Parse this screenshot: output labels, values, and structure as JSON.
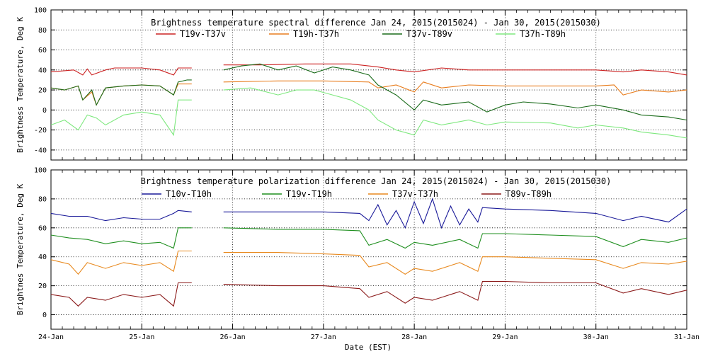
{
  "xlabel": "Date (EST)",
  "x_ticks": [
    "24-Jan",
    "25-Jan",
    "26-Jan",
    "27-Jan",
    "28-Jan",
    "29-Jan",
    "30-Jan",
    "31-Jan"
  ],
  "chart_data": [
    {
      "type": "line",
      "title": "Brightness temperature spectral difference    Jan 24, 2015(2015024) - Jan 30, 2015(2015030)",
      "ylabel": "Brightness Temperature, Deg K",
      "xlim": [
        0,
        7
      ],
      "ylim": [
        -50,
        100
      ],
      "y_ticks": [
        -40,
        -20,
        0,
        20,
        40,
        60,
        80,
        100
      ],
      "grid": true,
      "legend_placement": "top",
      "data_gap_days": [
        1.55,
        1.9
      ],
      "series": [
        {
          "name": "T19v-T37v",
          "color": "#cc2222",
          "x": [
            0,
            0.25,
            0.35,
            0.4,
            0.45,
            0.6,
            0.7,
            1.0,
            1.2,
            1.35,
            1.4,
            1.55,
            1.9,
            2.3,
            2.8,
            3.3,
            3.6,
            3.8,
            4.0,
            4.3,
            4.6,
            5.0,
            5.6,
            6.0,
            6.3,
            6.5,
            6.8,
            7.0
          ],
          "y": [
            38,
            40,
            35,
            41,
            35,
            40,
            42,
            42,
            40,
            35,
            42,
            42,
            45,
            45,
            46,
            46,
            43,
            40,
            38,
            42,
            40,
            40,
            40,
            40,
            38,
            40,
            38,
            35
          ]
        },
        {
          "name": "T19h-T37h",
          "color": "#e87d1e",
          "x": [
            0,
            0.15,
            0.3,
            0.35,
            0.45,
            0.5,
            0.6,
            0.8,
            1.0,
            1.2,
            1.35,
            1.4,
            1.55,
            1.9,
            2.5,
            3.0,
            3.5,
            3.6,
            3.8,
            4.0,
            4.1,
            4.3,
            4.6,
            5.0,
            5.5,
            6.0,
            6.2,
            6.3,
            6.5,
            6.8,
            7.0
          ],
          "y": [
            22,
            20,
            24,
            10,
            18,
            5,
            22,
            24,
            25,
            24,
            15,
            26,
            26,
            28,
            29,
            29,
            28,
            22,
            25,
            18,
            28,
            22,
            25,
            24,
            24,
            24,
            25,
            15,
            20,
            18,
            20
          ]
        },
        {
          "name": "T37v-T89v",
          "color": "#1a6b1a",
          "x": [
            0,
            0.15,
            0.3,
            0.35,
            0.45,
            0.5,
            0.6,
            0.8,
            1.0,
            1.2,
            1.35,
            1.4,
            1.5,
            1.55,
            1.9,
            2.1,
            2.3,
            2.5,
            2.7,
            2.9,
            3.1,
            3.3,
            3.5,
            3.6,
            3.8,
            4.0,
            4.1,
            4.3,
            4.6,
            4.8,
            5.0,
            5.2,
            5.5,
            5.8,
            6.0,
            6.3,
            6.5,
            6.8,
            7.0
          ],
          "y": [
            22,
            20,
            24,
            10,
            20,
            5,
            22,
            24,
            25,
            24,
            15,
            28,
            30,
            30,
            40,
            44,
            46,
            40,
            44,
            37,
            43,
            40,
            35,
            25,
            15,
            0,
            10,
            5,
            8,
            -2,
            5,
            8,
            6,
            2,
            5,
            0,
            -5,
            -7,
            -10
          ]
        },
        {
          "name": "T37h-T89h",
          "color": "#7ee87e",
          "x": [
            0,
            0.15,
            0.3,
            0.4,
            0.5,
            0.6,
            0.8,
            1.0,
            1.2,
            1.35,
            1.4,
            1.55,
            1.9,
            2.2,
            2.5,
            2.7,
            2.9,
            3.1,
            3.3,
            3.5,
            3.6,
            3.8,
            4.0,
            4.1,
            4.3,
            4.6,
            4.8,
            5.0,
            5.5,
            5.8,
            6.0,
            6.3,
            6.5,
            6.8,
            7.0
          ],
          "y": [
            -15,
            -10,
            -20,
            -5,
            -8,
            -15,
            -5,
            -2,
            -5,
            -25,
            10,
            10,
            20,
            22,
            15,
            20,
            20,
            15,
            10,
            0,
            -10,
            -20,
            -25,
            -10,
            -15,
            -10,
            -15,
            -12,
            -13,
            -18,
            -15,
            -18,
            -22,
            -25,
            -28
          ]
        }
      ]
    },
    {
      "type": "line",
      "title": "Brightness temperature polarization difference    Jan 24, 2015(2015024) - Jan 30, 2015(2015030)",
      "ylabel": "Brightnes Temperature, Deg K",
      "xlim": [
        0,
        7
      ],
      "ylim": [
        -10,
        100
      ],
      "y_ticks": [
        0,
        20,
        40,
        60,
        80,
        100
      ],
      "grid": true,
      "legend_placement": "top",
      "data_gap_days": [
        1.55,
        1.9
      ],
      "series": [
        {
          "name": "T10v-T10h",
          "color": "#1a1a99",
          "x": [
            0,
            0.2,
            0.4,
            0.6,
            0.8,
            1.0,
            1.2,
            1.35,
            1.4,
            1.55,
            1.9,
            2.5,
            3.0,
            3.4,
            3.5,
            3.6,
            3.7,
            3.8,
            3.9,
            4.0,
            4.1,
            4.2,
            4.3,
            4.4,
            4.5,
            4.6,
            4.7,
            4.75,
            5.0,
            5.5,
            6.0,
            6.3,
            6.5,
            6.8,
            7.0
          ],
          "y": [
            70,
            68,
            68,
            65,
            67,
            66,
            66,
            70,
            72,
            71,
            71,
            71,
            71,
            70,
            65,
            76,
            62,
            72,
            60,
            78,
            63,
            80,
            60,
            75,
            62,
            73,
            64,
            74,
            73,
            72,
            70,
            65,
            68,
            64,
            73
          ]
        },
        {
          "name": "T19v-T19h",
          "color": "#1f8f1f",
          "x": [
            0,
            0.2,
            0.4,
            0.6,
            0.8,
            1.0,
            1.2,
            1.35,
            1.4,
            1.55,
            1.9,
            2.5,
            3.0,
            3.4,
            3.5,
            3.7,
            3.9,
            4.0,
            4.2,
            4.5,
            4.7,
            4.75,
            5.0,
            5.5,
            6.0,
            6.3,
            6.5,
            6.8,
            7.0
          ],
          "y": [
            55,
            53,
            52,
            49,
            51,
            49,
            50,
            46,
            60,
            60,
            60,
            59,
            59,
            58,
            48,
            52,
            46,
            50,
            48,
            52,
            46,
            56,
            56,
            55,
            54,
            47,
            52,
            50,
            53
          ]
        },
        {
          "name": "T37v-T37h",
          "color": "#e8891e",
          "x": [
            0,
            0.2,
            0.3,
            0.4,
            0.6,
            0.8,
            1.0,
            1.2,
            1.35,
            1.4,
            1.55,
            1.9,
            2.5,
            3.0,
            3.4,
            3.5,
            3.7,
            3.9,
            4.0,
            4.2,
            4.5,
            4.7,
            4.75,
            5.0,
            5.5,
            6.0,
            6.3,
            6.5,
            6.8,
            7.0
          ],
          "y": [
            38,
            35,
            28,
            36,
            32,
            36,
            34,
            36,
            30,
            44,
            44,
            43,
            43,
            42,
            41,
            33,
            36,
            28,
            32,
            30,
            36,
            30,
            40,
            40,
            39,
            38,
            32,
            36,
            35,
            37
          ]
        },
        {
          "name": "T89v-T89h",
          "color": "#8b1a1a",
          "x": [
            0,
            0.2,
            0.3,
            0.4,
            0.6,
            0.8,
            1.0,
            1.2,
            1.35,
            1.4,
            1.55,
            1.9,
            2.5,
            3.0,
            3.4,
            3.5,
            3.7,
            3.9,
            4.0,
            4.2,
            4.5,
            4.7,
            4.75,
            5.0,
            5.5,
            6.0,
            6.3,
            6.5,
            6.8,
            7.0
          ],
          "y": [
            14,
            12,
            6,
            12,
            10,
            14,
            12,
            14,
            6,
            22,
            22,
            21,
            20,
            20,
            18,
            12,
            16,
            8,
            12,
            10,
            16,
            10,
            23,
            23,
            22,
            22,
            15,
            18,
            14,
            17
          ]
        }
      ]
    }
  ]
}
